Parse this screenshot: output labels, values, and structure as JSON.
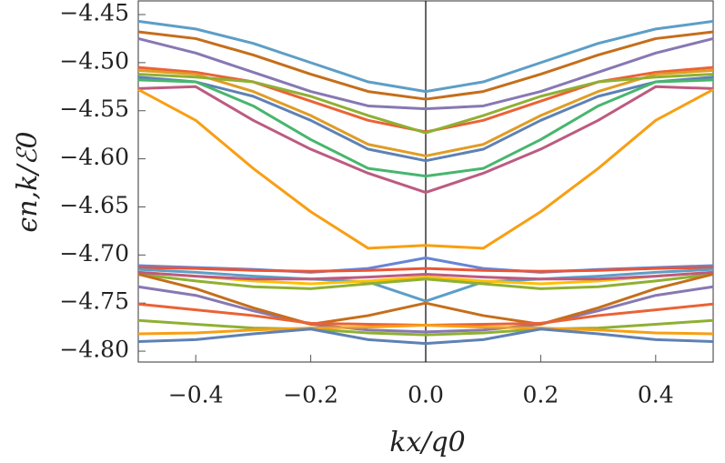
{
  "chart_data": {
    "type": "line",
    "xlabel": "kx/q0",
    "ylabel": "ϵn,k/ℰ0",
    "x": [
      -0.5,
      -0.4,
      -0.3,
      -0.2,
      -0.1,
      0.0,
      0.1,
      0.2,
      0.3,
      0.4,
      0.5
    ],
    "xlim": [
      -0.5,
      0.5
    ],
    "xticks": [
      {
        "value": -0.4,
        "label": "−0.4"
      },
      {
        "value": -0.2,
        "label": "−0.2"
      },
      {
        "value": 0.0,
        "label": "0.0"
      },
      0.2,
      0.4
    ],
    "ylim": [
      -4.8113,
      -4.4358
    ],
    "yticks": [
      {
        "value": -4.45,
        "label": "−4.45"
      },
      {
        "value": -4.5,
        "label": "−4.50"
      },
      {
        "value": -4.55,
        "label": "−4.55"
      },
      {
        "value": -4.6,
        "label": "−4.60"
      },
      {
        "value": -4.65,
        "label": "−4.65"
      },
      {
        "value": -4.7,
        "label": "−4.70"
      },
      {
        "value": -4.75,
        "label": "−4.75"
      },
      {
        "value": -4.8,
        "label": "−4.80"
      }
    ],
    "grid": false,
    "series": [
      {
        "color": "#5d9ec7",
        "values": [
          -4.457,
          -4.465,
          -4.48,
          -4.5,
          -4.52,
          -4.53,
          -4.52,
          -4.5,
          -4.48,
          -4.465,
          -4.457
        ]
      },
      {
        "color": "#c56e1a",
        "values": [
          -4.468,
          -4.475,
          -4.492,
          -4.512,
          -4.53,
          -4.538,
          -4.53,
          -4.512,
          -4.492,
          -4.475,
          -4.468
        ]
      },
      {
        "color": "#8778b3",
        "values": [
          -4.475,
          -4.49,
          -4.51,
          -4.53,
          -4.545,
          -4.548,
          -4.545,
          -4.53,
          -4.51,
          -4.49,
          -4.475
        ]
      },
      {
        "color": "#eb6235",
        "values": [
          -4.505,
          -4.51,
          -4.52,
          -4.54,
          -4.56,
          -4.572,
          -4.56,
          -4.54,
          -4.52,
          -4.51,
          -4.505
        ]
      },
      {
        "color": "#e19c24",
        "values": [
          -4.508,
          -4.512,
          -4.53,
          -4.555,
          -4.585,
          -4.597,
          -4.585,
          -4.555,
          -4.53,
          -4.512,
          -4.508
        ]
      },
      {
        "color": "#8fb032",
        "values": [
          -4.512,
          -4.515,
          -4.52,
          -4.535,
          -4.555,
          -4.573,
          -4.555,
          -4.535,
          -4.52,
          -4.515,
          -4.512
        ]
      },
      {
        "color": "#5e81b5",
        "values": [
          -4.515,
          -4.52,
          -4.535,
          -4.56,
          -4.59,
          -4.602,
          -4.59,
          -4.56,
          -4.535,
          -4.52,
          -4.515
        ]
      },
      {
        "color": "#47b66d",
        "values": [
          -4.518,
          -4.52,
          -4.545,
          -4.58,
          -4.61,
          -4.618,
          -4.61,
          -4.58,
          -4.545,
          -4.52,
          -4.518
        ]
      },
      {
        "color": "#bc5b80",
        "values": [
          -4.527,
          -4.525,
          -4.56,
          -4.59,
          -4.615,
          -4.635,
          -4.615,
          -4.59,
          -4.56,
          -4.525,
          -4.527
        ]
      },
      {
        "color": "#f89f13",
        "values": [
          -4.528,
          -4.56,
          -4.61,
          -4.655,
          -4.693,
          -4.69,
          -4.693,
          -4.655,
          -4.61,
          -4.56,
          -4.528
        ]
      },
      {
        "color": "#6685d9",
        "values": [
          -4.711,
          -4.713,
          -4.715,
          -4.718,
          -4.714,
          -4.703,
          -4.714,
          -4.718,
          -4.715,
          -4.713,
          -4.711
        ]
      },
      {
        "color": "#e95536",
        "values": [
          -4.713,
          -4.714,
          -4.716,
          -4.717,
          -4.716,
          -4.714,
          -4.716,
          -4.717,
          -4.716,
          -4.714,
          -4.713
        ]
      },
      {
        "color": "#5d9ec7",
        "values": [
          -4.715,
          -4.718,
          -4.722,
          -4.725,
          -4.728,
          -4.748,
          -4.728,
          -4.725,
          -4.722,
          -4.718,
          -4.715
        ]
      },
      {
        "color": "#ffbf00",
        "values": [
          -4.718,
          -4.722,
          -4.727,
          -4.73,
          -4.727,
          -4.723,
          -4.727,
          -4.73,
          -4.727,
          -4.722,
          -4.718
        ]
      },
      {
        "color": "#8fb032",
        "values": [
          -4.72,
          -4.727,
          -4.733,
          -4.735,
          -4.73,
          -4.725,
          -4.73,
          -4.735,
          -4.733,
          -4.727,
          -4.72
        ]
      },
      {
        "color": "#bc5b80",
        "values": [
          -4.718,
          -4.722,
          -4.725,
          -4.725,
          -4.723,
          -4.72,
          -4.723,
          -4.725,
          -4.725,
          -4.722,
          -4.718
        ]
      },
      {
        "color": "#8778b3",
        "values": [
          -4.733,
          -4.742,
          -4.758,
          -4.772,
          -4.778,
          -4.78,
          -4.778,
          -4.772,
          -4.758,
          -4.742,
          -4.733
        ]
      },
      {
        "color": "#c56e1a",
        "values": [
          -4.72,
          -4.735,
          -4.755,
          -4.772,
          -4.763,
          -4.75,
          -4.763,
          -4.772,
          -4.755,
          -4.735,
          -4.72
        ]
      },
      {
        "color": "#eb6235",
        "values": [
          -4.751,
          -4.757,
          -4.763,
          -4.771,
          -4.772,
          -4.773,
          -4.772,
          -4.771,
          -4.763,
          -4.757,
          -4.751
        ]
      },
      {
        "color": "#8fb032",
        "values": [
          -4.768,
          -4.772,
          -4.776,
          -4.777,
          -4.781,
          -4.783,
          -4.781,
          -4.777,
          -4.776,
          -4.772,
          -4.768
        ]
      },
      {
        "color": "#f89f13",
        "values": [
          -4.782,
          -4.781,
          -4.778,
          -4.776,
          -4.775,
          -4.773,
          -4.775,
          -4.776,
          -4.778,
          -4.781,
          -4.782
        ]
      },
      {
        "color": "#5e81b5",
        "values": [
          -4.79,
          -4.788,
          -4.782,
          -4.777,
          -4.788,
          -4.792,
          -4.788,
          -4.777,
          -4.782,
          -4.788,
          -4.79
        ]
      }
    ]
  }
}
